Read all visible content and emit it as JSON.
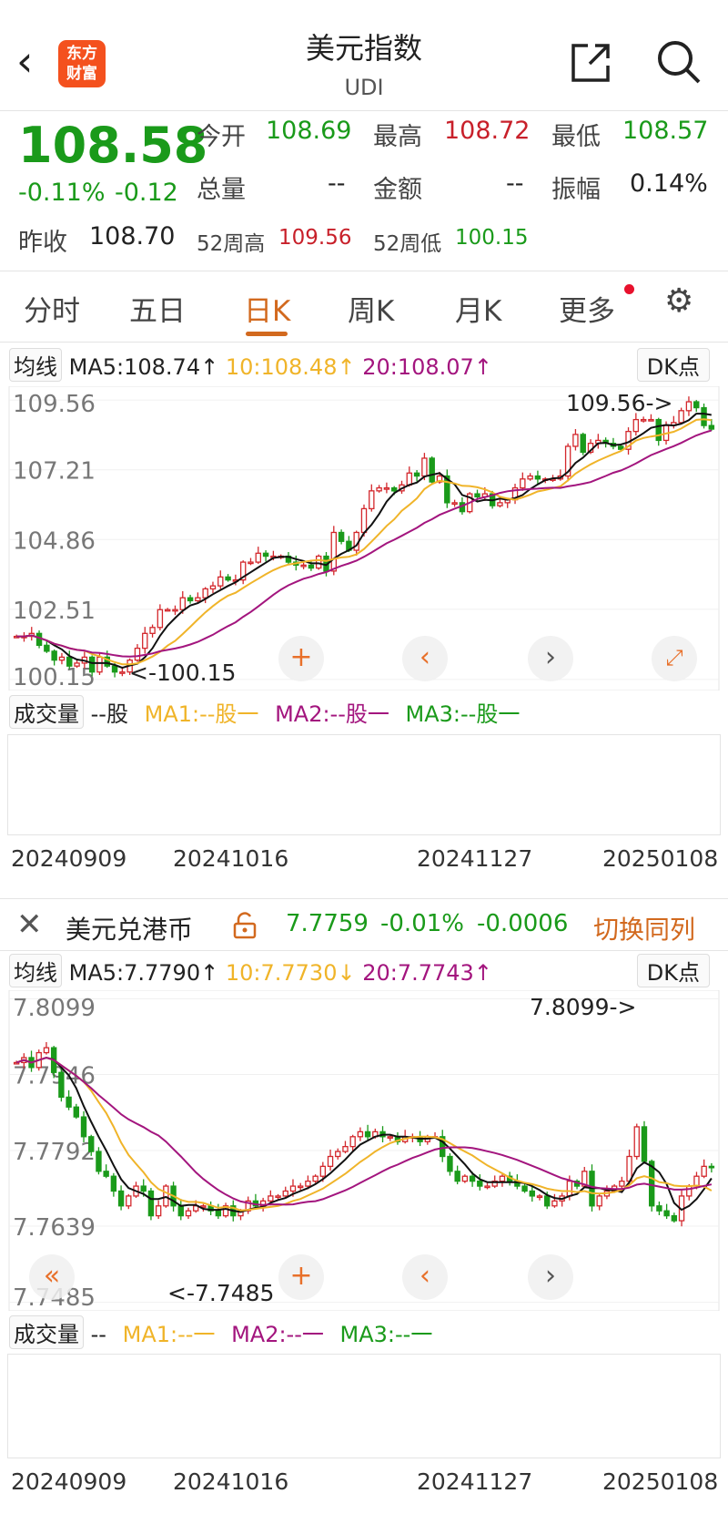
{
  "header": {
    "title": "美元指数",
    "code": "UDI",
    "logo_text": "东方财富",
    "icons": [
      "back-icon",
      "share-icon",
      "search-icon"
    ]
  },
  "quote": {
    "price": "108.58",
    "change_pct": "-0.11%",
    "change": "-0.12",
    "open_label": "今开",
    "open": "108.69",
    "high_label": "最高",
    "high": "108.72",
    "low_label": "最低",
    "low": "108.57",
    "volume_label": "总量",
    "volume": "--",
    "amount_label": "金额",
    "amount": "--",
    "amplitude_label": "振幅",
    "amplitude": "0.14%",
    "prev_close_label": "昨收",
    "prev_close": "108.70",
    "w52_high_label": "52周高",
    "w52_high": "109.56",
    "w52_low_label": "52周低",
    "w52_low": "100.15"
  },
  "tabs": [
    {
      "label": "分时"
    },
    {
      "label": "五日"
    },
    {
      "label": "日K",
      "active": true
    },
    {
      "label": "周K"
    },
    {
      "label": "月K"
    },
    {
      "label": "更多"
    }
  ],
  "colors": {
    "up": "#d3272c",
    "down": "#1a9a1a",
    "ma5": "#111111",
    "ma10": "#f0b429",
    "ma20": "#a3157e",
    "accent": "#d2691e"
  },
  "chart1": {
    "ma_select": "均线",
    "ma5": "MA5:108.74↑",
    "ma10": "10:108.48↑",
    "ma20": "20:108.07↑",
    "dk": "DK点",
    "max_note": "109.56->",
    "min_note": "<-100.15",
    "vol_select": "成交量",
    "vol_value": "--股",
    "vol_ma1": "MA1:--股一",
    "vol_ma2": "MA2:--股一",
    "vol_ma3": "MA3:--股一",
    "dates": [
      "20240909",
      "20241016",
      "20241127",
      "20250108"
    ]
  },
  "chart2_header": {
    "title": "美元兑港币",
    "price": "7.7759",
    "change_pct": "-0.01%",
    "change": "-0.0006",
    "switch": "切换同列"
  },
  "chart2": {
    "ma_select": "均线",
    "ma5": "MA5:7.7790↑",
    "ma10": "10:7.7730↓",
    "ma20": "20:7.7743↑",
    "dk": "DK点",
    "max_note": "7.8099->",
    "min_note": "<-7.7485",
    "vol_select": "成交量",
    "vol_value": "--",
    "vol_ma1": "MA1:--一",
    "vol_ma2": "MA2:--一",
    "vol_ma3": "MA3:--一",
    "dates": [
      "20240909",
      "20241016",
      "20241127",
      "20250108"
    ]
  },
  "chart_data": [
    {
      "type": "candlestick",
      "name": "美元指数",
      "yticks": [
        "109.56",
        "107.21",
        "104.86",
        "102.51",
        "100.15"
      ],
      "ylim": [
        99.9,
        109.9
      ],
      "closes": [
        101.6,
        101.6,
        101.7,
        101.3,
        101.1,
        100.8,
        100.9,
        100.6,
        100.7,
        100.9,
        100.4,
        100.9,
        100.6,
        100.4,
        100.4,
        100.8,
        101.2,
        101.7,
        101.9,
        102.5,
        102.5,
        102.5,
        102.9,
        102.8,
        102.9,
        103.2,
        103.3,
        103.6,
        103.5,
        103.5,
        104.1,
        104.1,
        104.4,
        104.3,
        104.3,
        104.3,
        104.1,
        104.0,
        104.0,
        103.9,
        104.3,
        103.8,
        105.1,
        104.8,
        104.5,
        105.1,
        105.9,
        106.5,
        106.6,
        106.6,
        106.5,
        106.7,
        107.1,
        107.0,
        107.6,
        106.8,
        107.0,
        106.1,
        106.1,
        105.8,
        106.4,
        106.3,
        106.4,
        106.0,
        106.1,
        106.2,
        106.6,
        106.9,
        107.0,
        106.9,
        106.9,
        106.9,
        107.0,
        108.0,
        108.4,
        107.8,
        108.1,
        108.2,
        108.1,
        108.0,
        107.9,
        108.5,
        108.9,
        108.9,
        108.9,
        108.2,
        108.7,
        108.8,
        109.2,
        109.5,
        109.3,
        108.7,
        108.58
      ]
    },
    {
      "type": "candlestick",
      "name": "美元兑港币",
      "yticks": [
        "7.8099",
        "7.7946",
        "7.7792",
        "7.7639",
        "7.7485"
      ],
      "ylim": [
        7.7475,
        7.8109
      ],
      "closes": [
        7.797,
        7.798,
        7.796,
        7.799,
        7.8,
        7.795,
        7.79,
        7.788,
        7.786,
        7.782,
        7.779,
        7.775,
        7.774,
        7.771,
        7.768,
        7.77,
        7.772,
        7.771,
        7.766,
        7.768,
        7.772,
        7.768,
        7.766,
        7.767,
        7.768,
        7.768,
        7.767,
        7.766,
        7.768,
        7.766,
        7.767,
        7.769,
        7.768,
        7.769,
        7.77,
        7.77,
        7.771,
        7.772,
        7.772,
        7.773,
        7.774,
        7.776,
        7.778,
        7.779,
        7.78,
        7.782,
        7.783,
        7.782,
        7.783,
        7.782,
        7.782,
        7.781,
        7.782,
        7.782,
        7.781,
        7.782,
        7.782,
        7.778,
        7.775,
        7.773,
        7.774,
        7.773,
        7.772,
        7.772,
        7.773,
        7.774,
        7.773,
        7.772,
        7.771,
        7.77,
        7.77,
        7.768,
        7.769,
        7.77,
        7.773,
        7.772,
        7.775,
        7.768,
        7.77,
        7.771,
        7.772,
        7.773,
        7.778,
        7.784,
        7.777,
        7.768,
        7.767,
        7.766,
        7.765,
        7.77,
        7.772,
        7.774,
        7.776,
        7.7759
      ]
    }
  ]
}
